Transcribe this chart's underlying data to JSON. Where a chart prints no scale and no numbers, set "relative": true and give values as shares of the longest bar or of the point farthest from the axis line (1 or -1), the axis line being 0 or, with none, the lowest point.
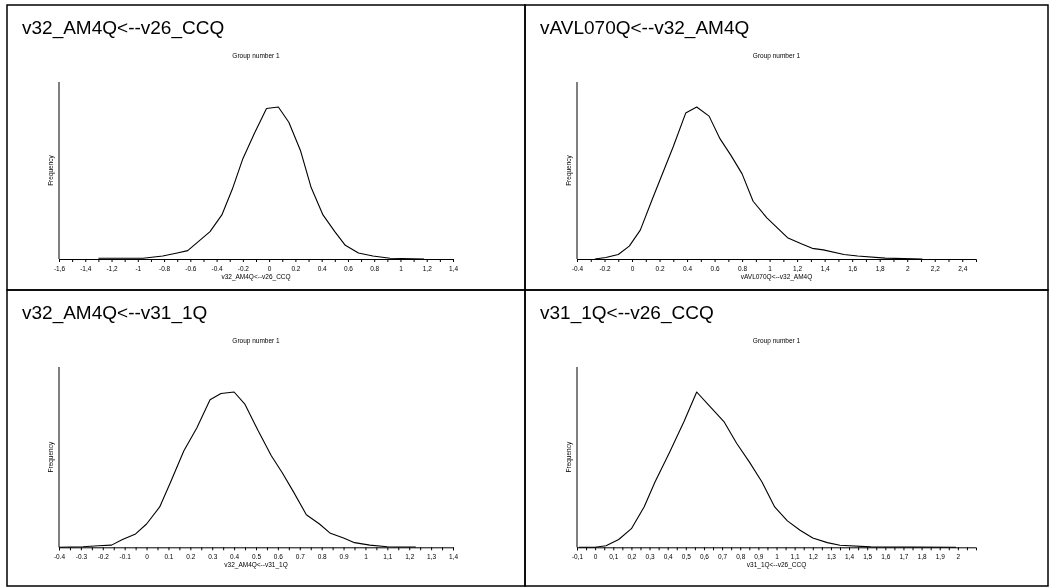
{
  "chart_data": [
    {
      "type": "line",
      "title": "v32_AM4Q<--v26_CCQ",
      "subtitle": "Group number 1",
      "xlabel": "v32_AM4Q<--v26_CCQ",
      "ylabel": "Frequency",
      "relative": true,
      "color": "#000000",
      "xlim": [
        -1.6,
        1.4
      ],
      "xticks": [
        {
          "value": -1.6,
          "label": "-1,6"
        },
        {
          "value": -1.4,
          "label": "-1,4"
        },
        {
          "value": -1.2,
          "label": "-1,2"
        },
        -1,
        -0.8,
        -0.6,
        -0.4,
        -0.2,
        0,
        0.2,
        0.4,
        0.6,
        0.8,
        1,
        {
          "value": 1.2,
          "label": "1,2"
        },
        {
          "value": 1.4,
          "label": "1,4"
        },
        {
          "value": -1.5,
          "label": null
        },
        {
          "value": -1.3,
          "label": null
        },
        {
          "value": -1.1,
          "label": null
        },
        {
          "value": -0.9,
          "label": null
        },
        {
          "value": -0.7,
          "label": null
        },
        {
          "value": -0.5,
          "label": null
        },
        {
          "value": -0.3,
          "label": null
        },
        {
          "value": -0.1,
          "label": null
        },
        {
          "value": 0.1,
          "label": null
        },
        {
          "value": 0.3,
          "label": null
        },
        {
          "value": 0.5,
          "label": null
        },
        {
          "value": 0.7,
          "label": null
        },
        {
          "value": 0.9,
          "label": null
        },
        {
          "value": 1.1,
          "label": null
        },
        {
          "value": 1.3,
          "label": null
        }
      ],
      "x": [
        -1.3,
        -0.96,
        -0.81,
        -0.7,
        -0.62,
        -0.45,
        -0.36,
        -0.28,
        -0.2,
        -0.11,
        -0.02,
        0.07,
        0.15,
        0.24,
        0.32,
        0.41,
        0.5,
        0.58,
        0.68,
        0.79,
        0.92,
        1.18
      ],
      "values": [
        0.005,
        0.005,
        0.02,
        0.04,
        0.055,
        0.18,
        0.29,
        0.46,
        0.66,
        0.83,
        0.99,
        1,
        0.9,
        0.71,
        0.47,
        0.29,
        0.18,
        0.09,
        0.04,
        0.02,
        0.005,
        0
      ]
    },
    {
      "type": "line",
      "title": "vAVL070Q<--v32_AM4Q",
      "subtitle": "Group number 1",
      "xlabel": "vAVL070Q<--v32_AM4Q",
      "ylabel": "Frequency",
      "relative": true,
      "color": "#000000",
      "xlim": [
        -0.4,
        2.5
      ],
      "xticks": [
        -0.4,
        -0.2,
        0,
        0.2,
        0.4,
        0.6,
        0.8,
        1,
        {
          "value": 1.2,
          "label": "1,2"
        },
        {
          "value": 1.4,
          "label": "1,4"
        },
        {
          "value": 1.6,
          "label": "1,6"
        },
        {
          "value": 1.8,
          "label": "1,8"
        },
        2,
        {
          "value": 2.2,
          "label": "2,2"
        },
        {
          "value": 2.4,
          "label": "2,4"
        },
        {
          "value": -0.3,
          "label": null
        },
        {
          "value": -0.1,
          "label": null
        },
        {
          "value": 0.1,
          "label": null
        },
        {
          "value": 0.3,
          "label": null
        },
        {
          "value": 0.5,
          "label": null
        },
        {
          "value": 0.7,
          "label": null
        },
        {
          "value": 0.9,
          "label": null
        },
        {
          "value": 1.1,
          "label": null
        },
        {
          "value": 1.3,
          "label": null
        },
        {
          "value": 1.5,
          "label": null
        },
        {
          "value": 1.7,
          "label": null
        },
        {
          "value": 1.9,
          "label": null
        },
        {
          "value": 2.1,
          "label": null
        },
        {
          "value": 2.3,
          "label": null
        }
      ],
      "x": [
        -0.27,
        -0.19,
        -0.1,
        -0.02,
        0.06,
        0.15,
        0.3,
        0.39,
        0.47,
        0.56,
        0.64,
        0.72,
        0.8,
        0.88,
        0.98,
        1.13,
        1.23,
        1.31,
        1.39,
        1.54,
        1.64,
        1.84,
        2.11
      ],
      "values": [
        0,
        0.01,
        0.03,
        0.085,
        0.19,
        0.4,
        0.74,
        0.96,
        1,
        0.94,
        0.79,
        0.68,
        0.56,
        0.38,
        0.27,
        0.14,
        0.1,
        0.07,
        0.06,
        0.03,
        0.02,
        0.006,
        0
      ]
    },
    {
      "type": "line",
      "title": "v32_AM4Q<--v31_1Q",
      "subtitle": "Group number 1",
      "xlabel": "v32_AM4Q<--v31_1Q",
      "ylabel": "Frequency",
      "relative": true,
      "color": "#000000",
      "xlim": [
        -0.4,
        1.4
      ],
      "xticks": [
        -0.4,
        -0.3,
        -0.2,
        -0.1,
        0,
        0.1,
        0.2,
        0.3,
        0.4,
        0.5,
        0.6,
        0.7,
        0.8,
        0.9,
        1,
        {
          "value": 1.1,
          "label": "1,1"
        },
        {
          "value": 1.2,
          "label": "1,2"
        },
        {
          "value": 1.3,
          "label": "1,3"
        },
        {
          "value": 1.4,
          "label": "1,4"
        },
        {
          "value": -0.35,
          "label": null
        },
        {
          "value": -0.25,
          "label": null
        },
        {
          "value": -0.15,
          "label": null
        },
        {
          "value": -0.05,
          "label": null
        },
        {
          "value": 0.05,
          "label": null
        },
        {
          "value": 0.15,
          "label": null
        },
        {
          "value": 0.25,
          "label": null
        },
        {
          "value": 0.35,
          "label": null
        },
        {
          "value": 0.45,
          "label": null
        },
        {
          "value": 0.55,
          "label": null
        },
        {
          "value": 0.65,
          "label": null
        },
        {
          "value": 0.75,
          "label": null
        },
        {
          "value": 0.85,
          "label": null
        },
        {
          "value": 0.95,
          "label": null
        },
        {
          "value": 1.05,
          "label": null
        },
        {
          "value": 1.15,
          "label": null
        },
        {
          "value": 1.25,
          "label": null
        },
        {
          "value": 1.35,
          "label": null
        }
      ],
      "x": [
        -0.4,
        -0.29,
        -0.22,
        -0.16,
        -0.11,
        -0.05,
        0,
        0.06,
        0.11,
        0.17,
        0.23,
        0.29,
        0.34,
        0.4,
        0.45,
        0.51,
        0.57,
        0.62,
        0.67,
        0.73,
        0.79,
        0.84,
        0.9,
        0.95,
        1.02,
        1.1,
        1.15,
        1.23
      ],
      "values": [
        0,
        0.004,
        0.01,
        0.014,
        0.05,
        0.086,
        0.15,
        0.26,
        0.42,
        0.62,
        0.77,
        0.95,
        0.99,
        1,
        0.92,
        0.75,
        0.59,
        0.48,
        0.36,
        0.21,
        0.15,
        0.09,
        0.06,
        0.03,
        0.014,
        0.004,
        0.002,
        0.002
      ]
    },
    {
      "type": "line",
      "title": "v31_1Q<--v26_CCQ",
      "subtitle": "Group number 1",
      "xlabel": "v31_1Q<--v26_CCQ",
      "ylabel": "Frequency",
      "relative": true,
      "color": "#000000",
      "xlim": [
        -0.1,
        2.1
      ],
      "xticks": [
        {
          "value": -0.1,
          "label": "-0,1"
        },
        0,
        {
          "value": 0.1,
          "label": "0,1"
        },
        {
          "value": 0.2,
          "label": "0,2"
        },
        {
          "value": 0.3,
          "label": "0,3"
        },
        {
          "value": 0.4,
          "label": "0,4"
        },
        {
          "value": 0.5,
          "label": "0,5"
        },
        {
          "value": 0.6,
          "label": "0,6"
        },
        {
          "value": 0.7,
          "label": "0,7"
        },
        {
          "value": 0.8,
          "label": "0,8"
        },
        {
          "value": 0.9,
          "label": "0,9"
        },
        1,
        {
          "value": 1.1,
          "label": "1,1"
        },
        {
          "value": 1.2,
          "label": "1,2"
        },
        {
          "value": 1.3,
          "label": "1,3"
        },
        {
          "value": 1.4,
          "label": "1,4"
        },
        {
          "value": 1.5,
          "label": "1,5"
        },
        {
          "value": 1.6,
          "label": "1,6"
        },
        {
          "value": 1.7,
          "label": "1,7"
        },
        {
          "value": 1.8,
          "label": "1,8"
        },
        {
          "value": 1.9,
          "label": "1,9"
        },
        2,
        {
          "value": -0.05,
          "label": null
        },
        {
          "value": 0.05,
          "label": null
        },
        {
          "value": 0.15,
          "label": null
        },
        {
          "value": 0.25,
          "label": null
        },
        {
          "value": 0.35,
          "label": null
        },
        {
          "value": 0.45,
          "label": null
        },
        {
          "value": 0.55,
          "label": null
        },
        {
          "value": 0.65,
          "label": null
        },
        {
          "value": 0.75,
          "label": null
        },
        {
          "value": 0.85,
          "label": null
        },
        {
          "value": 0.95,
          "label": null
        },
        {
          "value": 1.05,
          "label": null
        },
        {
          "value": 1.15,
          "label": null
        },
        {
          "value": 1.25,
          "label": null
        },
        {
          "value": 1.35,
          "label": null
        },
        {
          "value": 1.45,
          "label": null
        },
        {
          "value": 1.55,
          "label": null
        },
        {
          "value": 1.65,
          "label": null
        },
        {
          "value": 1.75,
          "label": null
        },
        {
          "value": 1.85,
          "label": null
        },
        {
          "value": 1.95,
          "label": null
        },
        {
          "value": 2.05,
          "label": null
        }
      ],
      "x": [
        -0.09,
        0,
        0.06,
        0.13,
        0.2,
        0.27,
        0.33,
        0.41,
        0.49,
        0.56,
        0.63,
        0.71,
        0.78,
        0.85,
        0.92,
        0.99,
        1.06,
        1.13,
        1.2,
        1.28,
        1.35,
        1.52,
        1.99
      ],
      "values": [
        0,
        0,
        0.01,
        0.05,
        0.12,
        0.26,
        0.42,
        0.61,
        0.81,
        1,
        0.91,
        0.81,
        0.67,
        0.55,
        0.42,
        0.26,
        0.17,
        0.11,
        0.06,
        0.03,
        0.013,
        0.003,
        0
      ]
    }
  ]
}
